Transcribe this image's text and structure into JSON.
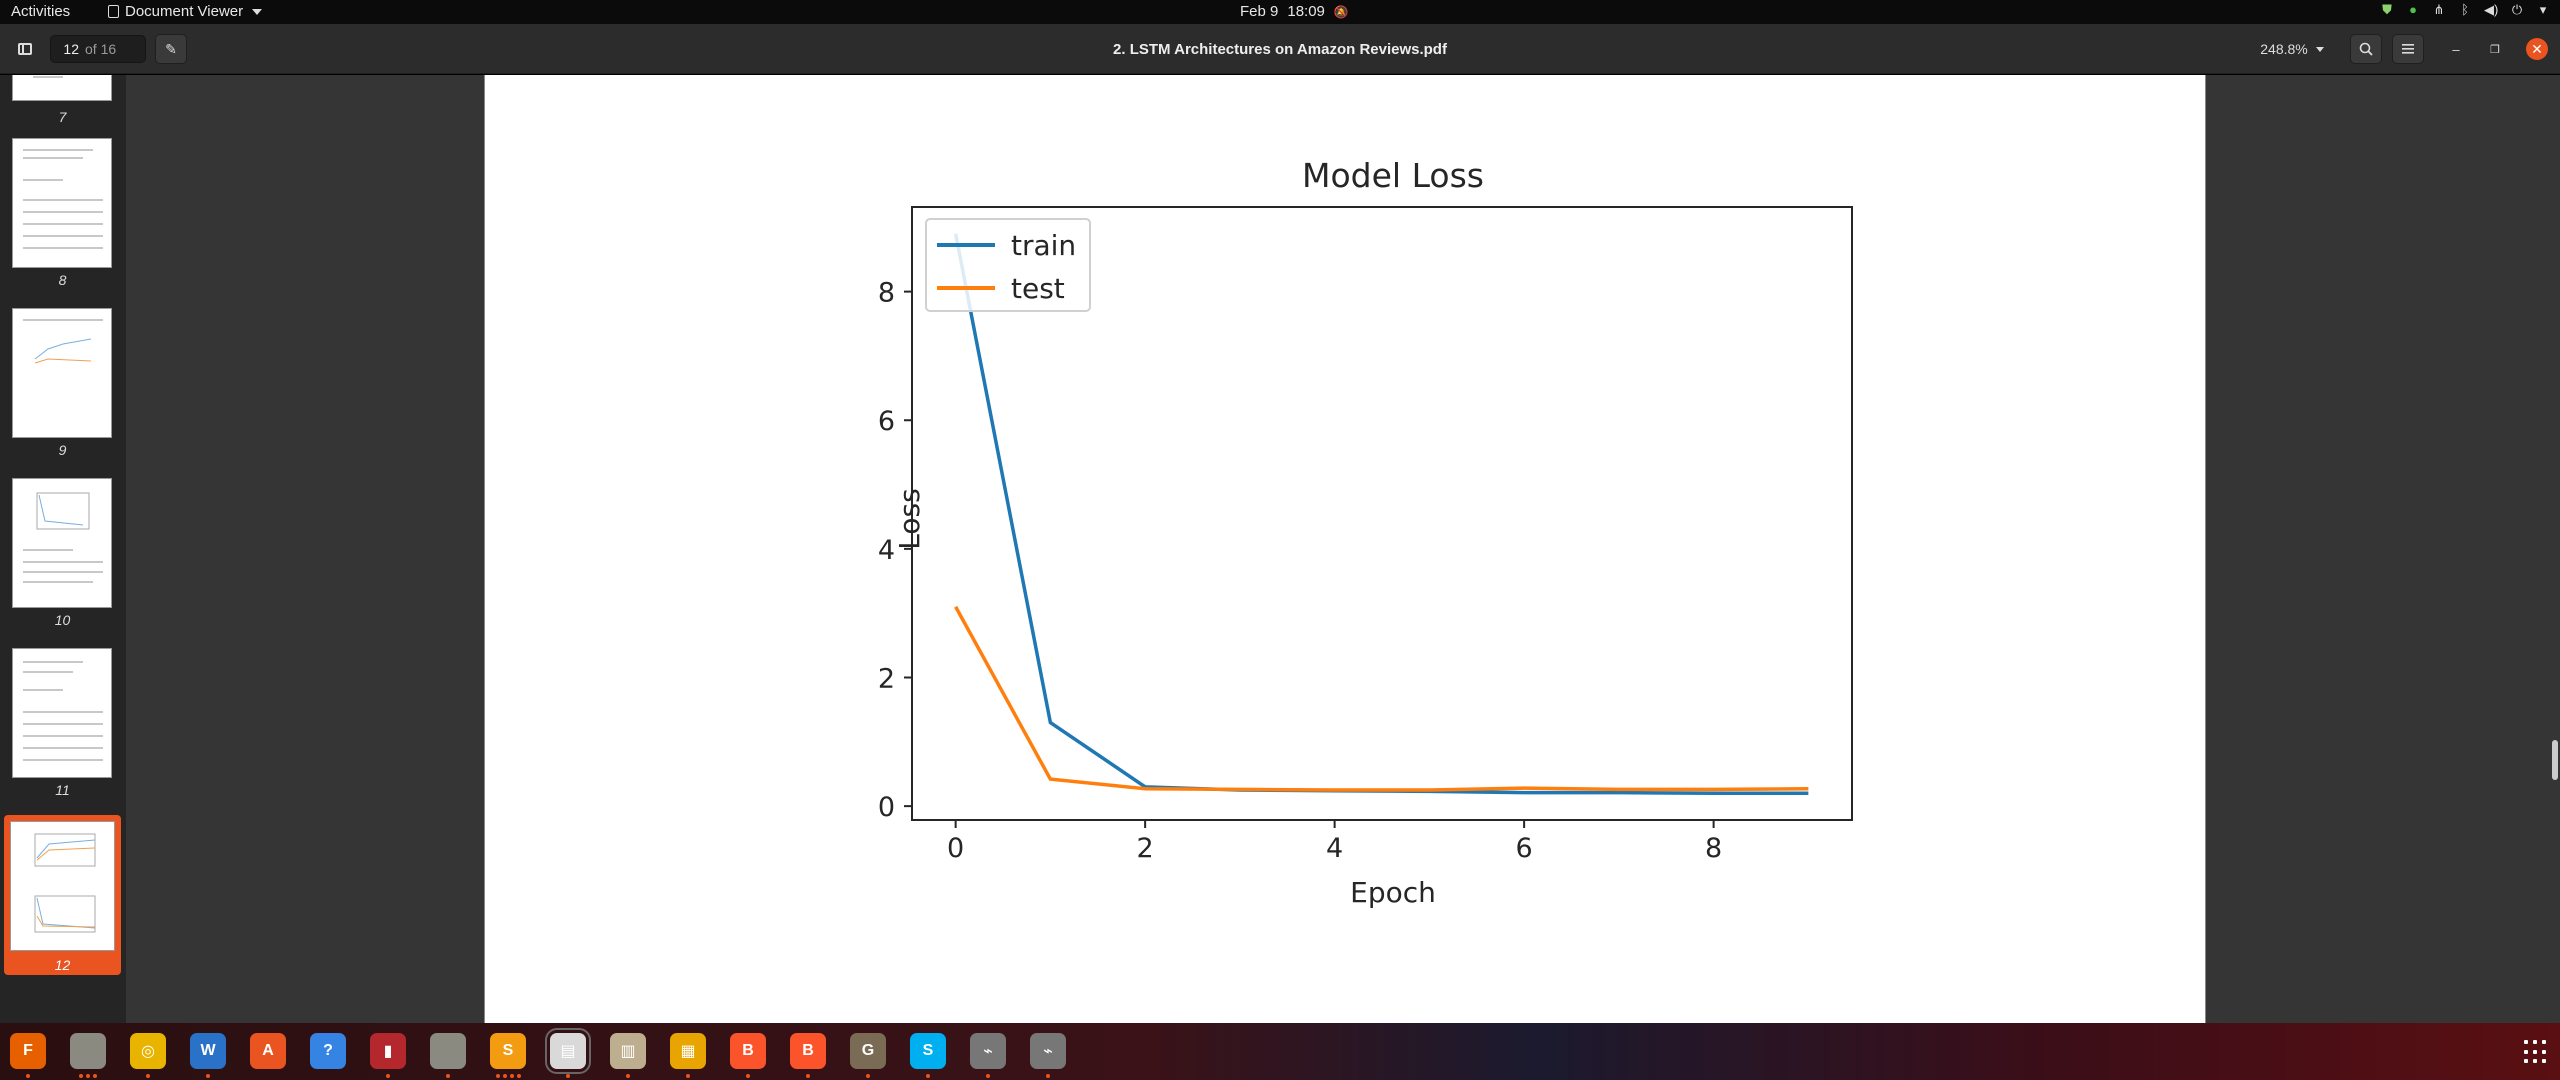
{
  "topbar": {
    "activities": "Activities",
    "app_name": "Document Viewer",
    "date": "Feb 9",
    "time": "18:09"
  },
  "headerbar": {
    "page_current": "12",
    "page_of": "of 16",
    "title": "2. LSTM Architectures on Amazon Reviews.pdf",
    "zoom": "248.8%"
  },
  "sidebar": {
    "thumbnails": [
      {
        "label": "7"
      },
      {
        "label": "8"
      },
      {
        "label": "9"
      },
      {
        "label": "10"
      },
      {
        "label": "11"
      },
      {
        "label": "12",
        "selected": true
      }
    ]
  },
  "chart_data": {
    "type": "line",
    "title": "Model Loss",
    "xlabel": "Epoch",
    "ylabel": "Loss",
    "x": [
      0,
      1,
      2,
      3,
      4,
      5,
      6,
      7,
      8,
      9
    ],
    "series": [
      {
        "name": "train",
        "color": "#1f77b4",
        "values": [
          8.9,
          1.3,
          0.3,
          0.25,
          0.24,
          0.23,
          0.21,
          0.21,
          0.2,
          0.2
        ]
      },
      {
        "name": "test",
        "color": "#ff7f0e",
        "values": [
          3.1,
          0.42,
          0.27,
          0.26,
          0.25,
          0.25,
          0.28,
          0.26,
          0.26,
          0.27
        ]
      }
    ],
    "xlim": [
      -0.45,
      9.45
    ],
    "ylim": [
      -0.2,
      9.3
    ],
    "xticks": [
      0,
      2,
      4,
      6,
      8
    ],
    "yticks": [
      0,
      2,
      4,
      6,
      8
    ],
    "legend": "upper-left",
    "grid": false
  },
  "dock": {
    "apps": [
      {
        "name": "firefox",
        "color": "#e66000",
        "glyph": "F"
      },
      {
        "name": "files",
        "color": "#8a8a80",
        "glyph": ""
      },
      {
        "name": "rhythmbox",
        "color": "#e8b400",
        "glyph": "◎"
      },
      {
        "name": "writer",
        "color": "#2a72c8",
        "glyph": "W"
      },
      {
        "name": "software",
        "color": "#e95420",
        "glyph": "A"
      },
      {
        "name": "help",
        "color": "#3584e4",
        "glyph": "?"
      },
      {
        "name": "system-monitor",
        "color": "#b4282d",
        "glyph": "▮"
      },
      {
        "name": "files-2",
        "color": "#8a8a80",
        "glyph": ""
      },
      {
        "name": "sublime-text",
        "color": "#f39c12",
        "glyph": "S"
      },
      {
        "name": "document-viewer",
        "color": "#d9d9d9",
        "glyph": "▤"
      },
      {
        "name": "archive-manager",
        "color": "#bcae8e",
        "glyph": "▥"
      },
      {
        "name": "calculator",
        "color": "#e8a400",
        "glyph": "▦"
      },
      {
        "name": "brave",
        "color": "#fb542b",
        "glyph": "B"
      },
      {
        "name": "brave-2",
        "color": "#fb542b",
        "glyph": "B"
      },
      {
        "name": "gimp",
        "color": "#7a6b55",
        "glyph": "G"
      },
      {
        "name": "skype",
        "color": "#00aff0",
        "glyph": "S"
      },
      {
        "name": "usb-drive",
        "color": "#777777",
        "glyph": "⌁"
      },
      {
        "name": "usb-drive-2",
        "color": "#777777",
        "glyph": "⌁"
      }
    ]
  }
}
